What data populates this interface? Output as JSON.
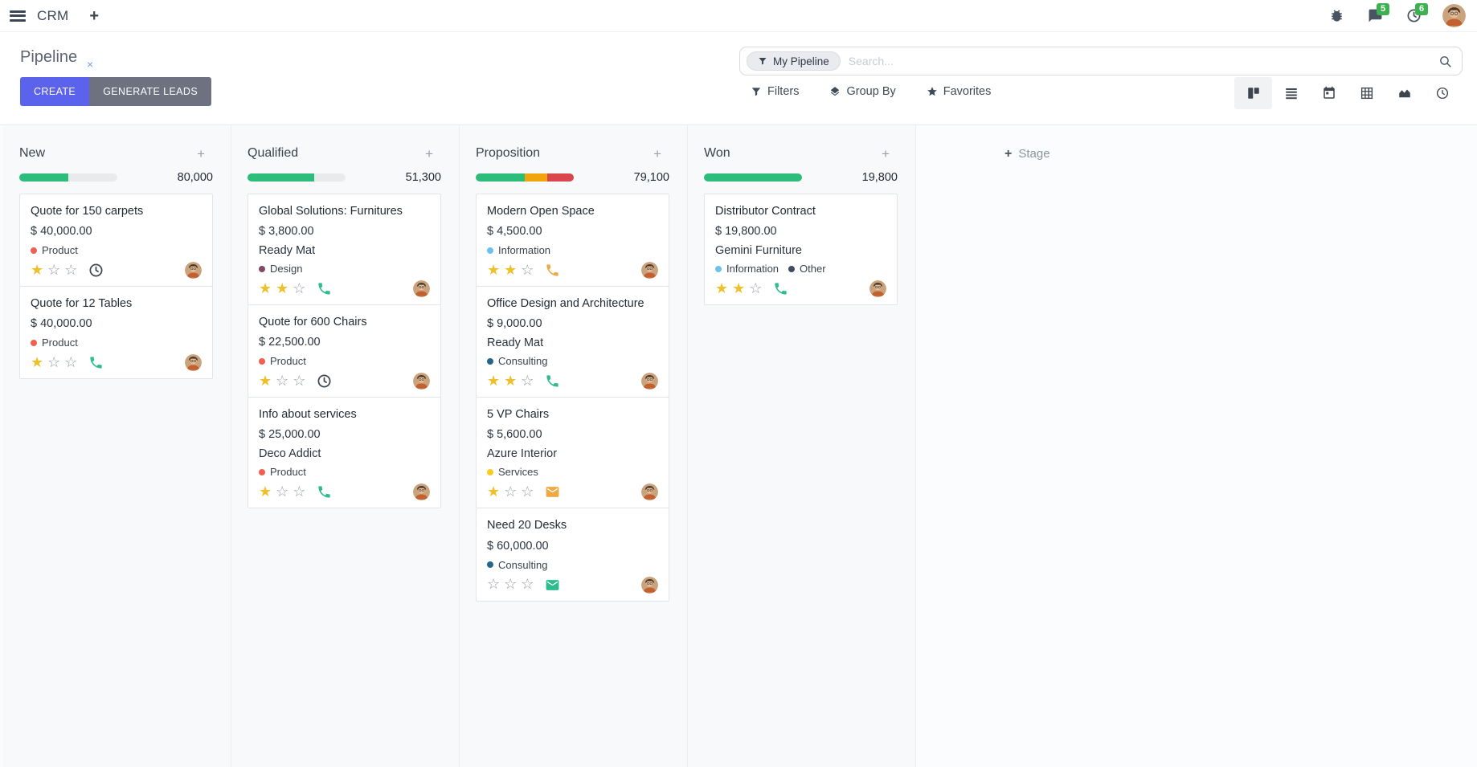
{
  "navbar": {
    "app": "CRM",
    "messages_badge": "5",
    "activities_badge": "6"
  },
  "control_panel": {
    "title": "Pipeline",
    "create_label": "CREATE",
    "generate_leads_label": "GENERATE LEADS",
    "search_facet": "My Pipeline",
    "search_placeholder": "Search...",
    "filters_label": "Filters",
    "group_by_label": "Group By",
    "favorites_label": "Favorites"
  },
  "board": {
    "add_stage_label": "Stage",
    "columns": [
      {
        "title": "New",
        "count": "80,000",
        "progress": [
          {
            "color": "#2dbd7a",
            "pct": 50
          }
        ],
        "cards": [
          {
            "title": "Quote for 150 carpets",
            "amount": "$ 40,000.00",
            "tags": [
              {
                "label": "Product",
                "color": "#f06050"
              }
            ],
            "stars": 1,
            "activity": {
              "icon": "clock",
              "color": "#3f474e"
            }
          },
          {
            "title": "Quote for 12 Tables",
            "amount": "$ 40,000.00",
            "tags": [
              {
                "label": "Product",
                "color": "#f06050"
              }
            ],
            "stars": 1,
            "activity": {
              "icon": "phone",
              "color": "#2dbd8a"
            }
          }
        ]
      },
      {
        "title": "Qualified",
        "count": "51,300",
        "progress": [
          {
            "color": "#2dbd7a",
            "pct": 68
          }
        ],
        "cards": [
          {
            "title": "Global Solutions: Furnitures",
            "amount": "$ 3,800.00",
            "partner": "Ready Mat",
            "tags": [
              {
                "label": "Design",
                "color": "#814968"
              }
            ],
            "stars": 2,
            "activity": {
              "icon": "phone",
              "color": "#2dbd8a"
            }
          },
          {
            "title": "Quote for 600 Chairs",
            "amount": "$ 22,500.00",
            "tags": [
              {
                "label": "Product",
                "color": "#f06050"
              }
            ],
            "stars": 1,
            "activity": {
              "icon": "clock",
              "color": "#3f474e"
            }
          },
          {
            "title": "Info about services",
            "amount": "$ 25,000.00",
            "partner": "Deco Addict",
            "tags": [
              {
                "label": "Product",
                "color": "#f06050"
              }
            ],
            "stars": 1,
            "activity": {
              "icon": "phone",
              "color": "#2dbd8a"
            }
          }
        ]
      },
      {
        "title": "Proposition",
        "count": "79,100",
        "progress": [
          {
            "color": "#2dbd7a",
            "pct": 50
          },
          {
            "color": "#f0a50f",
            "pct": 23
          },
          {
            "color": "#d9464b",
            "pct": 27
          }
        ],
        "cards": [
          {
            "title": "Modern Open Space",
            "amount": "$ 4,500.00",
            "tags": [
              {
                "label": "Information",
                "color": "#6cc1ed"
              }
            ],
            "stars": 2,
            "activity": {
              "icon": "phone",
              "color": "#efa944"
            }
          },
          {
            "title": "Office Design and Architecture",
            "amount": "$ 9,000.00",
            "partner": "Ready Mat",
            "tags": [
              {
                "label": "Consulting",
                "color": "#246689"
              }
            ],
            "stars": 2,
            "activity": {
              "icon": "phone",
              "color": "#2dbd8a"
            }
          },
          {
            "title": "5 VP Chairs",
            "amount": "$ 5,600.00",
            "partner": "Azure Interior",
            "tags": [
              {
                "label": "Services",
                "color": "#f7cd1f"
              }
            ],
            "stars": 1,
            "activity": {
              "icon": "envelope",
              "color": "#efa944"
            }
          },
          {
            "title": "Need 20 Desks",
            "amount": "$ 60,000.00",
            "tags": [
              {
                "label": "Consulting",
                "color": "#246689"
              }
            ],
            "stars": 0,
            "activity": {
              "icon": "envelope",
              "color": "#2dbd8a"
            }
          }
        ]
      },
      {
        "title": "Won",
        "count": "19,800",
        "progress": [
          {
            "color": "#2dbd7a",
            "pct": 100
          }
        ],
        "cards": [
          {
            "title": "Distributor Contract",
            "amount": "$ 19,800.00",
            "partner": "Gemini Furniture",
            "tags": [
              {
                "label": "Information",
                "color": "#6cc1ed"
              },
              {
                "label": "Other",
                "color": "#3e4b63"
              }
            ],
            "stars": 2,
            "activity": {
              "icon": "phone",
              "color": "#2dbd8a"
            }
          }
        ]
      }
    ]
  }
}
